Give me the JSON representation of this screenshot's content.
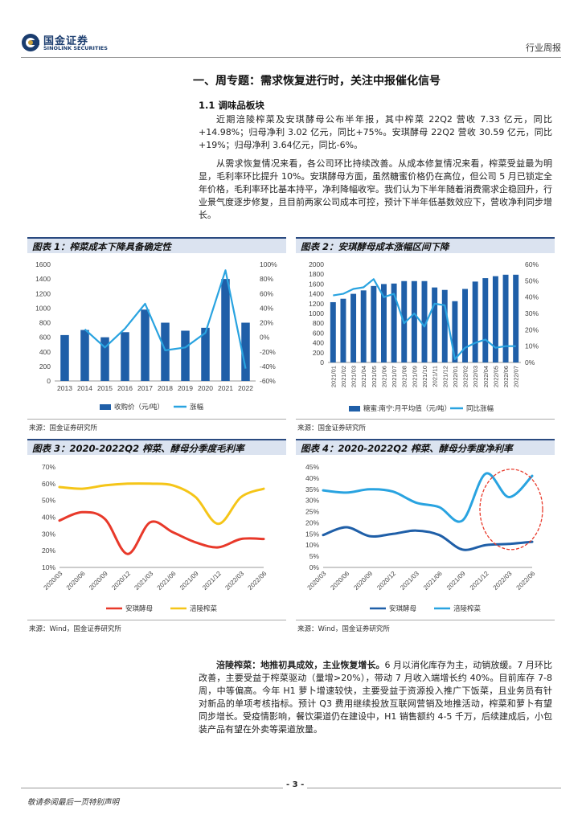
{
  "header": {
    "logo_cn": "国金证券",
    "logo_en": "SINOLINK SECURITIES",
    "report_type": "行业周报"
  },
  "section": {
    "title": "一、周专题：需求恢复进行时，关注中报催化信号",
    "subtitle": "1.1 调味品板块"
  },
  "paragraphs": {
    "p1": "近期涪陵榨菜及安琪酵母公布半年报，其中榨菜 22Q2 营收 7.33 亿元，同比+14.98%；归母净利 3.02 亿元，同比+75%。安琪酵母 22Q2 营收 30.59 亿元，同比+19%；归母净利 3.64亿元，同比-6%。",
    "p2": "从需求恢复情况来看，各公司环比持续改善。从成本修复情况来看，榨菜受益最为明显，毛利率环比提升 10%。安琪酵母方面，虽然糖蜜价格仍在高位，但公司 5 月已锁定全年价格，毛利率环比基本持平，净利降幅收窄。我们认为下半年随着消费需求企稳回升，行业景气度逐步修复，且目前两家公司成本可控，预计下半年低基数效应下，营收净利同步增长。",
    "p3_bold": "涪陵榨菜：地推初具成效，主业恢复增长。",
    "p3": "6 月以消化库存为主，动销放缓。7 月环比改善，主要受益于榨菜驱动（量增>20%），带动 7 月收入端增长约 40%。目前库存 7-8 周，中等偏高。今年 H1 萝卜增速较快，主要受益于资源投入推广下饭菜，且业务员有针对新品的单项考核指标。预计 Q3 费用继续投放互联网营销及地推活动，榨菜和萝卜有望同步增长。受疫情影响，餐饮渠道仍在建设中，H1 销售额约 4-5 千万，后续建成后，小包装产品有望在外卖等渠道放量。"
  },
  "figures": {
    "f1_title": "图表 1：榨菜成本下降具备确定性",
    "f2_title": "图表 2：安琪酵母成本涨幅区间下降",
    "f3_title": "图表 3：2020-2022Q2 榨菜、酵母分季度毛利率",
    "f4_title": "图表 4：2020-2022Q2 榨菜、酵母分季度净利率",
    "src_guojin": "来源：国金证券研究所",
    "src_wind": "来源：Wind，国金证券研究所"
  },
  "chart_data": [
    {
      "type": "bar",
      "categories": [
        "2013",
        "2014",
        "2015",
        "2016",
        "2017",
        "2018",
        "2019",
        "2020",
        "2021",
        "2022"
      ],
      "series": [
        {
          "name": "收购价（元/吨）",
          "type": "bar",
          "axis": "left",
          "values": [
            630,
            700,
            600,
            670,
            980,
            800,
            690,
            730,
            1400,
            800
          ]
        },
        {
          "name": "涨幅",
          "type": "line",
          "axis": "right",
          "values": [
            null,
            11,
            -14,
            12,
            46,
            -18,
            -14,
            6,
            92,
            -43
          ]
        }
      ],
      "ylim_left": [
        0,
        1600
      ],
      "yticks_left": [
        "0",
        "200",
        "400",
        "600",
        "800",
        "1000",
        "1200",
        "1400",
        "1600"
      ],
      "ylim_right": [
        -60,
        100
      ],
      "yticks_right": [
        "-60%",
        "-40%",
        "-20%",
        "0%",
        "20%",
        "40%",
        "60%",
        "80%",
        "100%"
      ],
      "colors": {
        "bar": "#1f5fa8",
        "line": "#29a3e0"
      },
      "legend": "bottom"
    },
    {
      "type": "bar",
      "categories": [
        "2021/01",
        "2021/02",
        "2021/03",
        "2021/04",
        "2021/05",
        "2021/06",
        "2021/07",
        "2021/08",
        "2021/09",
        "2021/10",
        "2021/11",
        "2021/12",
        "2022/01",
        "2022/02",
        "2022/03",
        "2022/04",
        "2022/05",
        "2022/06",
        "2022/07"
      ],
      "series": [
        {
          "name": "糖蜜:南宁:月平均值（元/吨）",
          "type": "bar",
          "axis": "left",
          "values": [
            1230,
            1300,
            1400,
            1470,
            1560,
            1600,
            1610,
            1660,
            1660,
            1660,
            1530,
            1480,
            1250,
            1500,
            1650,
            1720,
            1760,
            1790,
            1790
          ]
        },
        {
          "name": "同比涨幅",
          "type": "line",
          "axis": "right",
          "values": [
            41,
            42,
            45,
            46,
            51,
            40,
            42,
            24,
            30,
            22,
            36,
            35,
            2,
            9,
            12,
            14,
            9,
            10,
            10
          ]
        }
      ],
      "ylim_left": [
        0,
        2000
      ],
      "yticks_left": [
        "0",
        "200",
        "400",
        "600",
        "800",
        "1000",
        "1200",
        "1400",
        "1600",
        "1800",
        "2000"
      ],
      "ylim_right": [
        0,
        60
      ],
      "yticks_right": [
        "0%",
        "10%",
        "20%",
        "30%",
        "40%",
        "50%",
        "60%"
      ],
      "colors": {
        "bar": "#1f5fa8",
        "line": "#29a3e0"
      },
      "legend": "bottom"
    },
    {
      "type": "line",
      "categories": [
        "2020/03",
        "2020/06",
        "2020/09",
        "2020/12",
        "2021/03",
        "2021/06",
        "2021/09",
        "2021/12",
        "2022/03",
        "2022/06"
      ],
      "series": [
        {
          "name": "安琪酵母",
          "values": [
            38,
            43,
            39,
            18,
            37,
            31,
            25,
            22,
            27,
            27
          ]
        },
        {
          "name": "涪陵榨菜",
          "values": [
            58,
            57,
            59,
            60,
            60,
            59,
            52,
            36,
            52,
            57
          ]
        }
      ],
      "ylim": [
        10,
        70
      ],
      "yticks": [
        "10%",
        "20%",
        "30%",
        "40%",
        "50%",
        "60%",
        "70%"
      ],
      "colors": {
        "安琪酵母": "#e8392a",
        "涪陵榨菜": "#f5c518"
      },
      "legend": "bottom"
    },
    {
      "type": "line",
      "categories": [
        "2020/03",
        "2020/06",
        "2020/09",
        "2020/12",
        "2021/03",
        "2021/06",
        "2021/09",
        "2021/12",
        "2022/03",
        "2022/06"
      ],
      "series": [
        {
          "name": "安琪酵母",
          "values": [
            14.5,
            18,
            14,
            15,
            16.5,
            14.5,
            8,
            10,
            10.5,
            11.5
          ]
        },
        {
          "name": "涪陵榨菜",
          "values": [
            34.5,
            33.5,
            35,
            34,
            29,
            27,
            21,
            42,
            31.5,
            41
          ]
        }
      ],
      "ylim": [
        0,
        45
      ],
      "yticks": [
        "0%",
        "5%",
        "10%",
        "15%",
        "20%",
        "25%",
        "30%",
        "35%",
        "40%",
        "45%"
      ],
      "colors": {
        "安琪酵母": "#1f5fa8",
        "涪陵榨菜": "#29a3e0"
      },
      "highlight": "circle on 2021/12-2022/06",
      "legend": "bottom"
    }
  ],
  "footer": {
    "page": "- 3 -",
    "note": "敬请参阅最后一页特别声明"
  }
}
